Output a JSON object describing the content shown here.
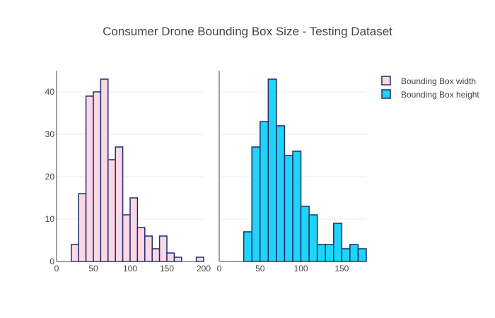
{
  "title": "Consumer Drone Bounding Box Size - Testing Dataset",
  "colors": {
    "series_1_fill": "#fcd7e5",
    "series_2_fill": "#1fd4f6",
    "bar_edge": "#1f2e6e"
  },
  "legend": {
    "placement": "top-right",
    "items": [
      "Bounding Box width",
      "Bounding Box height"
    ]
  },
  "chart_data": [
    {
      "type": "bar",
      "subtype": "histogram",
      "series_name": "Bounding Box width",
      "bin_size": 10,
      "bin_starts": [
        20,
        30,
        40,
        50,
        60,
        70,
        80,
        90,
        100,
        110,
        120,
        130,
        140,
        150,
        160,
        170,
        180,
        190
      ],
      "values": [
        4,
        16,
        39,
        40,
        43,
        24,
        27,
        11,
        15,
        8,
        6,
        3,
        6,
        2,
        1,
        0,
        0,
        1
      ],
      "xlim": [
        0,
        200
      ],
      "ylim": [
        0,
        45
      ],
      "xticks": [
        0,
        50,
        100,
        150,
        200
      ],
      "yticks": [
        0,
        10,
        20,
        30,
        40
      ],
      "grid": true
    },
    {
      "type": "bar",
      "subtype": "histogram",
      "series_name": "Bounding Box height",
      "bin_size": 10,
      "bin_starts": [
        30,
        40,
        50,
        60,
        70,
        80,
        90,
        100,
        110,
        120,
        130,
        140,
        150,
        160,
        170
      ],
      "values": [
        7,
        27,
        33,
        43,
        32,
        25,
        26,
        13,
        11,
        4,
        4,
        9,
        3,
        4,
        3
      ],
      "xlim": [
        0,
        180
      ],
      "ylim": [
        0,
        45
      ],
      "xticks": [
        0,
        50,
        100,
        150
      ],
      "yticks": [
        0,
        10,
        20,
        30,
        40
      ],
      "grid": true
    }
  ]
}
